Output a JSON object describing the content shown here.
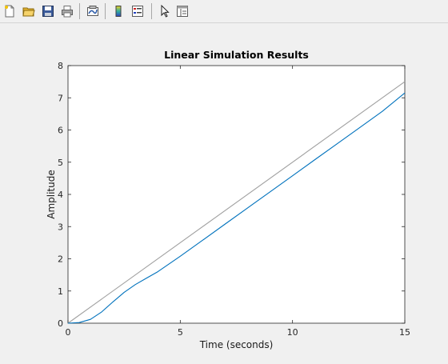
{
  "toolbar": {
    "items": [
      {
        "name": "new-figure-icon"
      },
      {
        "name": "open-file-icon"
      },
      {
        "name": "save-icon"
      },
      {
        "name": "print-icon"
      },
      {
        "name": "link-plot-icon"
      },
      {
        "name": "colorbar-icon"
      },
      {
        "name": "legend-icon"
      },
      {
        "name": "pointer-icon"
      },
      {
        "name": "property-inspector-icon"
      }
    ]
  },
  "colors": {
    "response": "#0072bd",
    "input": "#a0a0a0",
    "axes": "#262626",
    "background": "#ffffff"
  },
  "chart_data": {
    "type": "line",
    "title": "Linear Simulation Results",
    "xlabel": "Time (seconds)",
    "ylabel": "Amplitude",
    "xlim": [
      0,
      15
    ],
    "ylim": [
      0,
      8
    ],
    "xticks": [
      0,
      5,
      10,
      15
    ],
    "yticks": [
      0,
      1,
      2,
      3,
      4,
      5,
      6,
      7,
      8
    ],
    "grid": false,
    "series": [
      {
        "role": "input",
        "color": "#a0a0a0",
        "x": [
          0,
          15
        ],
        "y": [
          0,
          7.5
        ]
      },
      {
        "role": "response",
        "color": "#0072bd",
        "x": [
          0,
          0.5,
          1,
          1.5,
          2,
          2.5,
          3,
          3.5,
          4,
          5,
          6,
          7,
          8,
          9,
          10,
          11,
          12,
          13,
          14,
          15
        ],
        "y": [
          0,
          0.02,
          0.12,
          0.35,
          0.66,
          0.96,
          1.2,
          1.4,
          1.6,
          2.08,
          2.58,
          3.08,
          3.58,
          4.08,
          4.58,
          5.08,
          5.58,
          6.08,
          6.58,
          7.15
        ]
      }
    ]
  }
}
